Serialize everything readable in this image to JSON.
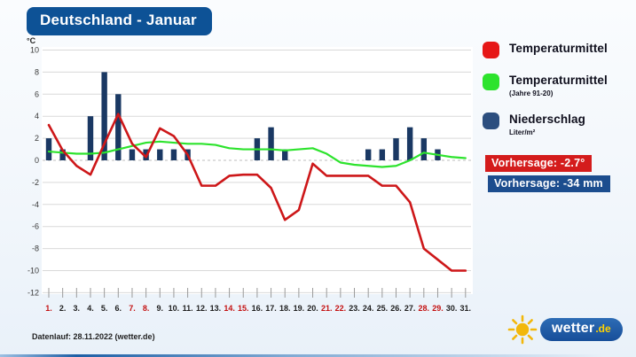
{
  "header": {
    "title": "Deutschland - Januar"
  },
  "chart_data": {
    "type": "mixed",
    "y_unit": "°C",
    "ylim": [
      -12,
      10
    ],
    "y_ticks": [
      10,
      8,
      6,
      4,
      2,
      0,
      -2,
      -4,
      -6,
      -8,
      -10,
      -12
    ],
    "grid": true,
    "legend_position": "right",
    "days": [
      "1.",
      "2.",
      "3.",
      "4.",
      "5.",
      "6.",
      "7.",
      "8.",
      "9.",
      "10.",
      "11.",
      "12.",
      "13.",
      "14.",
      "15.",
      "16.",
      "17.",
      "18.",
      "19.",
      "20.",
      "21.",
      "22.",
      "23.",
      "24.",
      "25.",
      "26.",
      "27.",
      "28.",
      "29.",
      "30.",
      "31."
    ],
    "weekend_days": [
      1,
      7,
      8,
      14,
      15,
      21,
      22,
      28,
      29
    ],
    "series": [
      {
        "name": "Temperaturmittel",
        "type": "line",
        "color": "#cd1719",
        "values": [
          3.2,
          0.9,
          -0.5,
          -1.3,
          1.5,
          4.2,
          1.5,
          0.3,
          2.9,
          2.2,
          0.5,
          -2.3,
          -2.3,
          -1.4,
          -1.3,
          -1.3,
          -2.5,
          -5.4,
          -4.5,
          -0.3,
          -1.4,
          -1.4,
          -1.4,
          -1.4,
          -2.3,
          -2.3,
          -3.8,
          -8.0,
          -9.0,
          -10.0,
          -10.0
        ]
      },
      {
        "name": "Temperaturmittel (Jahre 91-20)",
        "type": "line",
        "color": "#2de32d",
        "values": [
          0.8,
          0.7,
          0.6,
          0.6,
          0.7,
          1.0,
          1.3,
          1.6,
          1.7,
          1.6,
          1.5,
          1.5,
          1.4,
          1.1,
          1.0,
          1.0,
          1.0,
          0.9,
          1.0,
          1.1,
          0.6,
          -0.2,
          -0.4,
          -0.5,
          -0.6,
          -0.5,
          0.0,
          0.7,
          0.5,
          0.3,
          0.2
        ]
      },
      {
        "name": "Niederschlag (Liter/m²)",
        "type": "bar",
        "color": "#1a3863",
        "values": [
          2,
          1,
          0,
          4,
          8,
          6,
          1,
          1,
          1,
          1,
          1,
          0,
          0,
          0,
          0,
          2,
          3,
          1,
          0,
          0,
          0,
          0,
          0,
          1,
          1,
          2,
          3,
          2,
          1,
          0,
          0
        ]
      }
    ]
  },
  "legend": {
    "items": [
      {
        "label": "Temperaturmittel",
        "sublabel": "",
        "color": "#e61717"
      },
      {
        "label": "Temperaturmittel",
        "sublabel": "(Jahre 91-20)",
        "color": "#2de32d"
      },
      {
        "label": "Niederschlag",
        "sublabel": "Liter/m²",
        "color": "#2c4e7e"
      }
    ]
  },
  "forecasts": {
    "temperature_label": "Vorhersage: -2.7°",
    "precip_label": "Vorhersage: -34 mm"
  },
  "footer": {
    "datenlauf": "Datenlauf: 28.11.2022 (wetter.de)"
  },
  "logo": {
    "name": "wetter",
    "tld": ".de"
  },
  "colors": {
    "title_bg": "#0d5296",
    "badge_temp_bg": "#d41c1c",
    "badge_precip_bg": "#1c4d8e",
    "weekend_label": "#c41111"
  }
}
